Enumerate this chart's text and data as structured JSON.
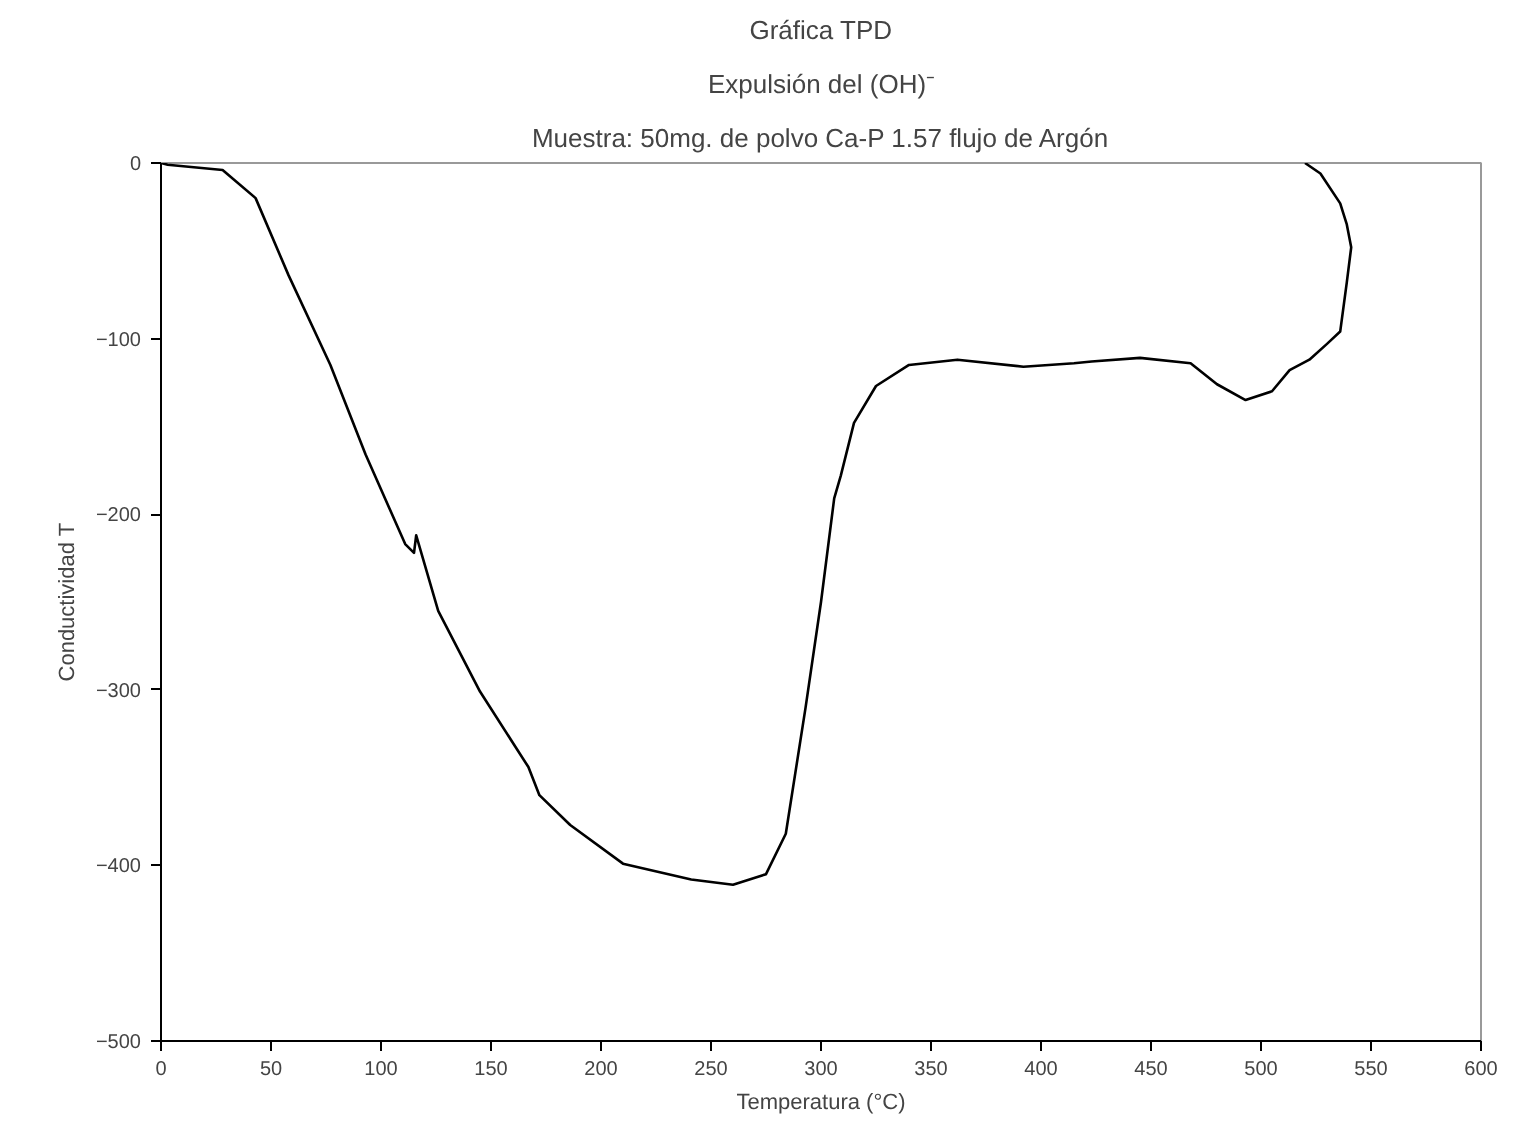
{
  "chart_data": {
    "type": "line",
    "title": "Gráfica TPD",
    "subtitle": "Expulsión del (OH)⁻",
    "annotations": [
      "Muestra: 50mg. de polvo Ca-P 1.57 flujo de Argón"
    ],
    "xlabel": "Temperatura (°C)",
    "ylabel": "Conductividad T",
    "grid": false,
    "marker": "none",
    "line_style": "solid",
    "xlim": [
      0,
      600
    ],
    "xticks": [
      0,
      50,
      100,
      150,
      200,
      250,
      300,
      350,
      400,
      450,
      500,
      550,
      600
    ],
    "ylim": [
      -500,
      0
    ],
    "yticks": [
      -500,
      -400,
      -300,
      -200,
      -100,
      0
    ],
    "series": [
      {
        "color": "#000000",
        "x": [
          0,
          3,
          28,
          43,
          58,
          77,
          93,
          111,
          115,
          116,
          126,
          145,
          167,
          172,
          186,
          210,
          241,
          260,
          275,
          284,
          293,
          300,
          306,
          309,
          315,
          325,
          340,
          362,
          392,
          415,
          423,
          445,
          468,
          480,
          493,
          505,
          513,
          522,
          530,
          536,
          539,
          541,
          539,
          536,
          527,
          520
        ],
        "values": [
          0,
          -1,
          -4,
          -20,
          -64,
          -115,
          -166,
          -217,
          -222,
          -212,
          -255,
          -301,
          -344,
          -360,
          -377,
          -399,
          -408,
          -411,
          -405,
          -382,
          -310,
          -250,
          -191,
          -178,
          -148,
          -127,
          -115,
          -112,
          -116,
          -114,
          -113,
          -111,
          -114,
          -126,
          -135,
          -130,
          -118,
          -112,
          -103,
          -96,
          -68,
          -48,
          -35,
          -23,
          -6,
          0
        ]
      }
    ]
  }
}
